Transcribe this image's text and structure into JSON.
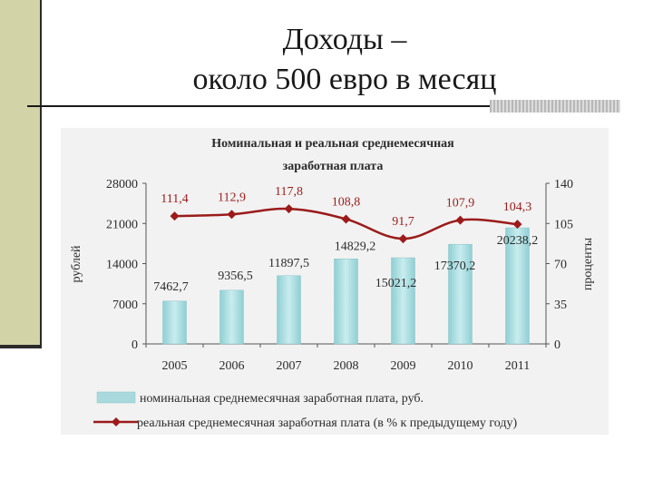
{
  "slide": {
    "title_line1": "Доходы –",
    "title_line2": "около 500 евро в месяц"
  },
  "colors": {
    "bar": "#a9d9dc",
    "line": "#9b1b1b",
    "accent_bar": "#d3d3a8"
  },
  "chart_data": {
    "type": "bar",
    "title_line1": "Номинальная и реальная среднемесячная",
    "title_line2": "заработная плата",
    "categories": [
      "2005",
      "2006",
      "2007",
      "2008",
      "2009",
      "2010",
      "2011"
    ],
    "series": [
      {
        "name": "номинальная среднемесячная заработная плата, руб.",
        "type": "bar",
        "axis": "left",
        "values": [
          7462.7,
          9356.5,
          11897.5,
          14829.2,
          15021.2,
          17370.2,
          20238.2
        ],
        "labels": [
          "7462,7",
          "9356,5",
          "11897,5",
          "14829,2",
          "15021,2",
          "17370,2",
          "20238,2"
        ]
      },
      {
        "name": "реальная среднемесячная заработная плата (в % к предыдущему году)",
        "type": "line",
        "axis": "right",
        "values": [
          111.4,
          112.9,
          117.8,
          108.8,
          91.7,
          107.9,
          104.3
        ],
        "labels": [
          "111,4",
          "112,9",
          "117,8",
          "108,8",
          "91,7",
          "107,9",
          "104,3"
        ]
      }
    ],
    "y_left": {
      "label": "рублей",
      "range": [
        0,
        28000
      ],
      "ticks": [
        "0",
        "7000",
        "14000",
        "21000",
        "28000"
      ]
    },
    "y_right": {
      "label": "проценты",
      "range": [
        0,
        140
      ],
      "ticks": [
        "0",
        "35",
        "70",
        "105",
        "140"
      ]
    },
    "legend_placement": "bottom"
  }
}
